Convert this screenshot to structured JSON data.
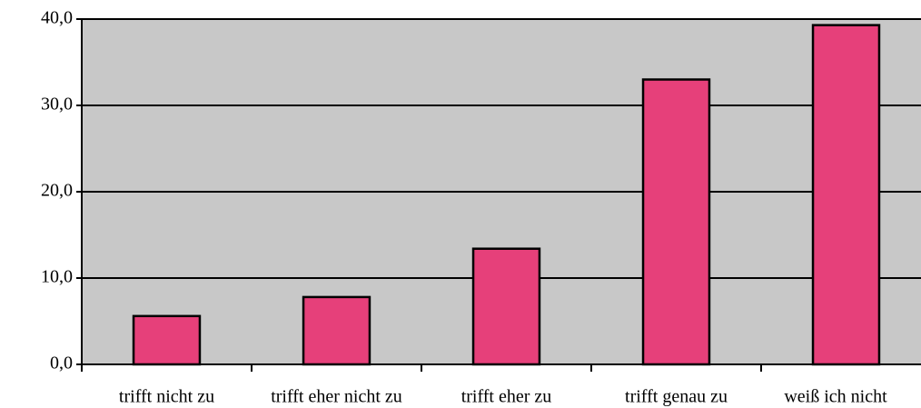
{
  "chart_data": {
    "type": "bar",
    "categories": [
      "trifft nicht zu",
      "trifft eher nicht zu",
      "trifft eher zu",
      "trifft genau zu",
      "weiß ich nicht"
    ],
    "values": [
      5.6,
      7.8,
      13.4,
      33.0,
      39.3
    ],
    "color": "#e6407a",
    "ylim": [
      0,
      40
    ],
    "yticks": [
      {
        "value": 0,
        "label": "0,0"
      },
      {
        "value": 10,
        "label": "10,0"
      },
      {
        "value": 20,
        "label": "20,0"
      },
      {
        "value": 30,
        "label": "30,0"
      },
      {
        "value": 40,
        "label": "40,0"
      }
    ],
    "grid": true
  }
}
